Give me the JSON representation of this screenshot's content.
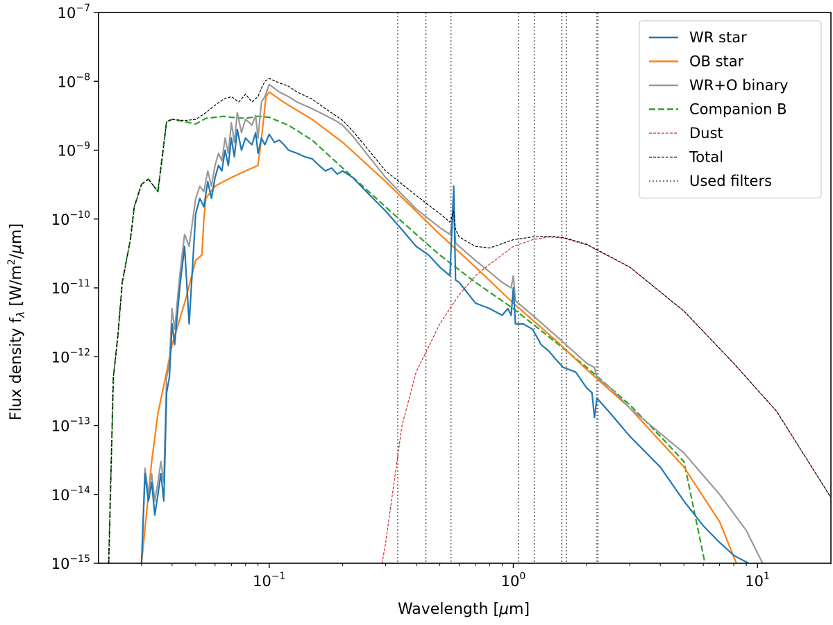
{
  "chart_data": {
    "type": "line",
    "xscale": "log",
    "yscale": "log",
    "xlabel_parts": [
      "Wavelength [",
      "μ",
      "m]"
    ],
    "ylabel_parts": [
      "Flux density f",
      "λ",
      " [W/m",
      "2",
      "/",
      "μ",
      "m]"
    ],
    "xlim": [
      0.02,
      20
    ],
    "ylim": [
      1e-15,
      1e-07
    ],
    "xticks": [
      {
        "value": 0.1,
        "base": "10",
        "exp": "−1"
      },
      {
        "value": 1,
        "base": "10",
        "exp": "0"
      },
      {
        "value": 10,
        "base": "10",
        "exp": "1"
      }
    ],
    "yticks": [
      {
        "value": 1e-15,
        "base": "10",
        "exp": "−15"
      },
      {
        "value": 1e-14,
        "base": "10",
        "exp": "−14"
      },
      {
        "value": 1e-13,
        "base": "10",
        "exp": "−13"
      },
      {
        "value": 1e-12,
        "base": "10",
        "exp": "−12"
      },
      {
        "value": 1e-11,
        "base": "10",
        "exp": "−11"
      },
      {
        "value": 1e-10,
        "base": "10",
        "exp": "−10"
      },
      {
        "value": 1e-09,
        "base": "10",
        "exp": "−9"
      },
      {
        "value": 1e-08,
        "base": "10",
        "exp": "−8"
      },
      {
        "value": 1e-07,
        "base": "10",
        "exp": "−7"
      }
    ],
    "filters": [
      0.336,
      0.438,
      0.555,
      1.05,
      1.22,
      1.58,
      1.65,
      2.2,
      2.22
    ],
    "series": [
      {
        "name": "Companion B",
        "color": "#2ca02c",
        "style": "dashed",
        "width": 2.2,
        "x": [
          0.022,
          0.023,
          0.024,
          0.025,
          0.027,
          0.028,
          0.03,
          0.032,
          0.035,
          0.038,
          0.04,
          0.045,
          0.05,
          0.055,
          0.06,
          0.065,
          0.07,
          0.08,
          0.09,
          0.1,
          0.12,
          0.15,
          0.2,
          0.3,
          0.4,
          0.5,
          0.7,
          1,
          1.5,
          2,
          3,
          4,
          5,
          6.1
        ],
        "y": [
          1e-15,
          5e-13,
          2e-12,
          1.2e-11,
          5e-11,
          1.5e-10,
          3.2e-10,
          3.8e-10,
          2.5e-10,
          2.6e-09,
          2.8e-09,
          2.6e-09,
          2.4e-09,
          2.9e-09,
          3e-09,
          3.1e-09,
          3e-09,
          2.9e-09,
          3.1e-09,
          3e-09,
          2.3e-09,
          1.4e-09,
          5.5e-10,
          1.5e-10,
          6e-11,
          3e-11,
          1.2e-11,
          5e-12,
          1.6e-12,
          7e-13,
          2e-13,
          7e-14,
          3e-14,
          1e-15
        ]
      },
      {
        "name": "WR star",
        "color": "#1f77b4",
        "style": "solid",
        "width": 2.2,
        "x": [
          0.03,
          0.031,
          0.032,
          0.033,
          0.034,
          0.035,
          0.036,
          0.037,
          0.038,
          0.039,
          0.04,
          0.041,
          0.043,
          0.045,
          0.047,
          0.05,
          0.052,
          0.054,
          0.056,
          0.058,
          0.06,
          0.062,
          0.064,
          0.066,
          0.068,
          0.07,
          0.072,
          0.074,
          0.077,
          0.08,
          0.083,
          0.085,
          0.088,
          0.09,
          0.093,
          0.096,
          0.1,
          0.105,
          0.11,
          0.115,
          0.12,
          0.13,
          0.14,
          0.15,
          0.16,
          0.17,
          0.18,
          0.19,
          0.2,
          0.22,
          0.25,
          0.3,
          0.35,
          0.4,
          0.45,
          0.5,
          0.55,
          0.57,
          0.58,
          0.6,
          0.7,
          0.8,
          0.9,
          0.95,
          0.98,
          1.0,
          1.02,
          1.1,
          1.2,
          1.3,
          1.4,
          1.5,
          1.6,
          1.8,
          2.0,
          2.1,
          2.15,
          2.2,
          2.5,
          3,
          4,
          5,
          6,
          7,
          8,
          9.2
        ],
        "y": [
          1e-15,
          2e-14,
          8e-15,
          1.5e-14,
          5e-15,
          1e-14,
          2e-14,
          8e-15,
          3e-13,
          5e-13,
          3e-12,
          1.5e-12,
          1e-11,
          4e-11,
          3e-12,
          1.2e-10,
          2e-10,
          1.5e-10,
          3.5e-10,
          2e-10,
          4e-10,
          6e-10,
          5e-10,
          1e-09,
          6e-10,
          1.5e-09,
          8e-10,
          2e-09,
          1e-09,
          1.5e-09,
          1.3e-09,
          1.2e-09,
          1.8e-09,
          9e-10,
          1.5e-09,
          1.2e-09,
          1.7e-09,
          1.3e-09,
          1.4e-09,
          1.2e-09,
          1e-09,
          9e-10,
          8e-10,
          7.5e-10,
          6e-10,
          5e-10,
          5.5e-10,
          4.5e-10,
          5e-10,
          4e-10,
          2.5e-10,
          1.3e-10,
          7e-11,
          4e-11,
          3e-11,
          2e-11,
          1.5e-11,
          3e-10,
          1.3e-11,
          1.2e-11,
          6e-12,
          5e-12,
          4e-12,
          5e-12,
          4e-12,
          1e-11,
          3e-12,
          3e-12,
          2.5e-12,
          1.5e-12,
          1.2e-12,
          9e-13,
          7e-13,
          6e-13,
          3.5e-13,
          3e-13,
          1.3e-13,
          2.5e-13,
          1.5e-13,
          7e-14,
          2.5e-14,
          8e-15,
          3.5e-15,
          2e-15,
          1.3e-15,
          1e-15
        ]
      },
      {
        "name": "OB star",
        "color": "#ff7f0e",
        "style": "solid",
        "width": 2.2,
        "x": [
          0.03,
          0.033,
          0.035,
          0.038,
          0.04,
          0.045,
          0.05,
          0.053,
          0.054,
          0.055,
          0.06,
          0.065,
          0.07,
          0.08,
          0.09,
          0.093,
          0.095,
          0.097,
          0.1,
          0.11,
          0.12,
          0.15,
          0.2,
          0.3,
          0.5,
          0.7,
          1,
          1.5,
          2,
          3,
          5,
          7,
          8.2
        ],
        "y": [
          1e-15,
          3e-14,
          1.5e-13,
          6e-13,
          1.5e-12,
          6e-12,
          2.5e-11,
          3e-11,
          1e-10,
          2e-10,
          3e-10,
          3.5e-10,
          4e-10,
          5e-10,
          6e-10,
          1.5e-09,
          3e-09,
          6e-09,
          7e-09,
          5.5e-09,
          4.5e-09,
          2.8e-09,
          1.3e-09,
          3.5e-10,
          6e-11,
          2e-11,
          6e-12,
          1.7e-12,
          6.5e-13,
          1.8e-13,
          2.5e-14,
          4e-15,
          1e-15
        ]
      },
      {
        "name": "WR+O binary",
        "color": "#999999",
        "style": "solid",
        "width": 2.2,
        "x": [
          0.03,
          0.031,
          0.032,
          0.033,
          0.034,
          0.035,
          0.036,
          0.037,
          0.038,
          0.039,
          0.04,
          0.041,
          0.043,
          0.045,
          0.047,
          0.05,
          0.052,
          0.054,
          0.056,
          0.058,
          0.06,
          0.062,
          0.064,
          0.066,
          0.068,
          0.07,
          0.072,
          0.074,
          0.077,
          0.08,
          0.083,
          0.085,
          0.088,
          0.09,
          0.093,
          0.096,
          0.1,
          0.11,
          0.12,
          0.13,
          0.15,
          0.17,
          0.19,
          0.2,
          0.22,
          0.25,
          0.3,
          0.4,
          0.5,
          0.55,
          0.57,
          0.58,
          0.6,
          0.7,
          0.8,
          0.9,
          0.98,
          1.0,
          1.02,
          1.2,
          1.5,
          2.0,
          2.15,
          2.2,
          2.5,
          3,
          5,
          7,
          9,
          10.5
        ],
        "y": [
          1e-15,
          2.4e-14,
          1e-14,
          2e-14,
          8e-15,
          1.5e-14,
          3e-14,
          1.5e-14,
          5e-13,
          8e-13,
          5e-12,
          2.5e-12,
          1.5e-11,
          6e-11,
          4e-11,
          2e-10,
          3e-10,
          2.5e-10,
          5e-10,
          3e-10,
          6e-10,
          9e-10,
          7e-10,
          1.5e-09,
          9e-10,
          2.5e-09,
          1.3e-09,
          3.5e-09,
          1.8e-09,
          2.8e-09,
          2.5e-09,
          2.3e-09,
          3.2e-09,
          1.5e-09,
          5e-09,
          6e-09,
          9e-09,
          7e-09,
          6e-09,
          5e-09,
          4e-09,
          3.2e-09,
          2.6e-09,
          2.3e-09,
          1.6e-09,
          9e-10,
          4e-10,
          1.4e-10,
          7.5e-11,
          6e-11,
          1.2e-10,
          4.5e-11,
          4e-11,
          2.5e-11,
          1.7e-11,
          1.2e-11,
          1e-11,
          1.5e-11,
          6.5e-12,
          4e-12,
          2e-12,
          8e-13,
          7e-13,
          5e-13,
          3.5e-13,
          1.8e-13,
          4e-14,
          1e-14,
          3e-15,
          1e-15
        ]
      },
      {
        "name": "Dust",
        "color": "#d62728",
        "style": "dashed",
        "width": 1.2,
        "x": [
          0.29,
          0.3,
          0.35,
          0.4,
          0.5,
          0.6,
          0.7,
          0.8,
          1.0,
          1.2,
          1.4,
          1.6,
          2,
          3,
          5,
          8,
          12,
          20
        ],
        "y": [
          1e-15,
          2e-15,
          1e-13,
          6e-13,
          3e-12,
          8e-12,
          1.5e-11,
          2.2e-11,
          4e-11,
          5e-11,
          5.5e-11,
          5.3e-11,
          4.2e-11,
          2e-11,
          4.6e-12,
          8e-13,
          1.6e-13,
          9e-15
        ]
      },
      {
        "name": "Total",
        "color": "#000000",
        "style": "dashed",
        "width": 1.2,
        "x": [
          0.022,
          0.023,
          0.024,
          0.025,
          0.027,
          0.028,
          0.03,
          0.032,
          0.035,
          0.038,
          0.04,
          0.045,
          0.05,
          0.055,
          0.06,
          0.065,
          0.07,
          0.075,
          0.08,
          0.085,
          0.09,
          0.093,
          0.096,
          0.1,
          0.11,
          0.12,
          0.13,
          0.15,
          0.17,
          0.2,
          0.22,
          0.25,
          0.3,
          0.4,
          0.5,
          0.55,
          0.57,
          0.58,
          0.6,
          0.7,
          0.8,
          1.0,
          1.2,
          1.4,
          1.6,
          2,
          3,
          5,
          8,
          12,
          20
        ],
        "y": [
          1e-15,
          5e-13,
          2e-12,
          1.2e-11,
          5e-11,
          1.5e-10,
          3.2e-10,
          3.8e-10,
          2.5e-10,
          2.6e-09,
          2.8e-09,
          2.7e-09,
          2.8e-09,
          3.5e-09,
          4.5e-09,
          5.5e-09,
          6e-09,
          5e-09,
          6.5e-09,
          5e-09,
          6e-09,
          8e-09,
          1e-08,
          1.1e-08,
          9.5e-09,
          8.5e-09,
          7e-09,
          5.5e-09,
          4e-09,
          2.7e-09,
          1.9e-09,
          1.1e-09,
          5e-10,
          2.2e-10,
          1.2e-10,
          9e-11,
          1.3e-10,
          7e-11,
          5.5e-11,
          4e-11,
          3.8e-11,
          5e-11,
          5.5e-11,
          5.6e-11,
          5.4e-11,
          4.3e-11,
          2e-11,
          4.6e-12,
          8e-13,
          1.6e-13,
          9e-15
        ]
      }
    ],
    "legend": {
      "position": "top-right",
      "entries": [
        {
          "label": "WR star",
          "color": "#1f77b4",
          "style": "solid"
        },
        {
          "label": "OB star",
          "color": "#ff7f0e",
          "style": "solid"
        },
        {
          "label": "WR+O binary",
          "color": "#999999",
          "style": "solid"
        },
        {
          "label": "Companion B",
          "color": "#2ca02c",
          "style": "dashed"
        },
        {
          "label": "Dust",
          "color": "#d62728",
          "style": "dashed-thin"
        },
        {
          "label": "Total",
          "color": "#000000",
          "style": "dashed-thin"
        },
        {
          "label": "Used filters",
          "color": "#808080",
          "style": "dotted"
        }
      ]
    }
  }
}
